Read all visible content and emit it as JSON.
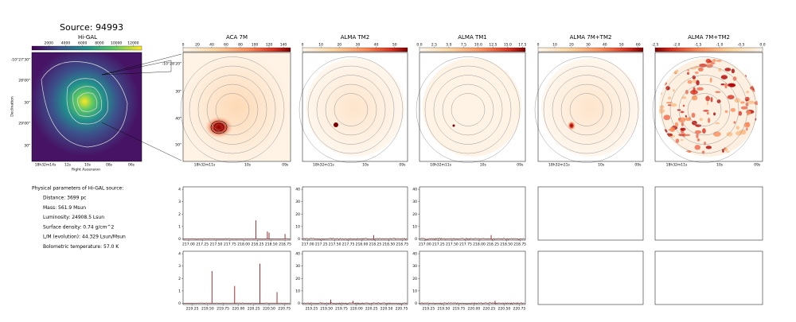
{
  "title": "Source: 94993",
  "higal": {
    "title": "Hi-GAL",
    "colorbar": {
      "lim": [
        0,
        13000
      ],
      "ticks": [
        2000,
        4000,
        6000,
        8000,
        10000,
        12000
      ]
    },
    "yticks": [
      "-10°27'30\"",
      "28'00\"",
      "30\"",
      "29'00\"",
      "30\""
    ],
    "xticks": [
      "18h32m14s",
      "12s",
      "10s",
      "08s",
      "06s"
    ],
    "ylabel": "Declination",
    "xlabel": "Right Ascension"
  },
  "panels": [
    {
      "title": "ACA 7M",
      "colorbar": {
        "lim": [
          0,
          150
        ],
        "ticks": [
          0,
          20,
          40,
          60,
          80,
          100,
          120,
          140
        ]
      },
      "yticks": [
        "-10°28'20\"",
        "30\"",
        "40\"",
        "50\""
      ],
      "xticks": [
        "18h32m11s",
        "10s",
        "09s"
      ]
    },
    {
      "title": "ALMA TM2",
      "colorbar": {
        "lim": [
          0,
          57
        ],
        "ticks": [
          0,
          10,
          20,
          30,
          40,
          50
        ]
      },
      "xticks": [
        "18h32m11s",
        "10s",
        "09s"
      ]
    },
    {
      "title": "ALMA TM1",
      "colorbar": {
        "lim": [
          0,
          18
        ],
        "ticks": [
          {
            "value": 0,
            "label": "0.0"
          },
          2.5,
          {
            "value": 5,
            "label": "5.0"
          },
          7.5,
          {
            "value": 10,
            "label": "10.0"
          },
          12.5,
          {
            "value": 15,
            "label": "15.0"
          },
          17.5
        ]
      },
      "xticks": [
        "18h32m11s",
        "10s",
        "09s"
      ]
    },
    {
      "title": "ALMA 7M+TM2",
      "colorbar": {
        "lim": [
          0,
          63
        ],
        "ticks": [
          0,
          10,
          20,
          30,
          40,
          50,
          60
        ]
      },
      "xticks": [
        "18h32m11s",
        "10s",
        "09s"
      ]
    },
    {
      "title": "ALMA 7M+TM2",
      "colorbar": {
        "lim": [
          -2.5,
          0
        ],
        "ticks": [
          -2.5,
          {
            "value": -2,
            "label": "-2.0"
          },
          -1.5,
          {
            "value": -1,
            "label": "-1.0"
          },
          -0.5,
          {
            "value": 0,
            "label": "0.0"
          }
        ]
      },
      "xticks": [
        "18h32m11s",
        "10s",
        "09s"
      ]
    }
  ],
  "params": {
    "heading": "Physical parameters of Hi-GAL source:",
    "lines": [
      "Distance: 3699 pc",
      "Mass: 561.9 Msun",
      "Luminosity: 24908.5 Lsun",
      "Surface density: 0.74 g/cm^2",
      "L/M (evolution): 44.329 Lsun/Msun",
      "Bolometric temperature: 57.0 K"
    ]
  },
  "spectra": [
    {
      "xlim": [
        216.9,
        218.85
      ],
      "xticks": [
        {
          "value": 217,
          "label": "217.00"
        },
        217.25,
        {
          "value": 217.5,
          "label": "217.50"
        },
        217.75,
        {
          "value": 218,
          "label": "218.00"
        },
        218.25,
        {
          "value": 218.5,
          "label": "218.50"
        },
        218.75
      ],
      "ylim": [
        -0.1,
        4.2
      ],
      "yticks": [
        0,
        1,
        2,
        3,
        4
      ],
      "peaks": [
        {
          "x": 218.22,
          "y": 1.5
        },
        {
          "x": 218.43,
          "y": 0.6
        },
        {
          "x": 218.46,
          "y": 0.5
        },
        {
          "x": 218.75,
          "y": 0.4
        }
      ]
    },
    {
      "xlim": [
        216.9,
        218.85
      ],
      "xticks": [
        {
          "value": 217,
          "label": "217.00"
        },
        217.25,
        {
          "value": 217.5,
          "label": "217.50"
        },
        217.75,
        {
          "value": 218,
          "label": "218.00"
        },
        218.25,
        {
          "value": 218.5,
          "label": "218.50"
        },
        218.75
      ],
      "ylim": [
        -1,
        42
      ],
      "yticks": [
        0,
        10,
        20,
        30,
        40
      ],
      "peaks": [
        {
          "x": 218.22,
          "y": 3
        }
      ]
    },
    {
      "xlim": [
        216.9,
        218.85
      ],
      "xticks": [
        {
          "value": 217,
          "label": "217.00"
        },
        217.25,
        {
          "value": 217.5,
          "label": "217.50"
        },
        217.75,
        {
          "value": 218,
          "label": "218.00"
        },
        218.25,
        {
          "value": 218.5,
          "label": "218.50"
        },
        218.75
      ],
      "ylim": [
        -1,
        42
      ],
      "yticks": [
        0,
        10,
        20,
        30,
        40
      ],
      "peaks": [
        {
          "x": 218.22,
          "y": 3
        }
      ]
    },
    {
      "xlim": [
        219.1,
        220.85
      ],
      "xticks": [
        219.25,
        {
          "value": 219.5,
          "label": "219.50"
        },
        219.75,
        {
          "value": 220,
          "label": "220.00"
        },
        220.25,
        {
          "value": 220.5,
          "label": "220.50"
        },
        220.75
      ],
      "ylim": [
        -0.1,
        4.2
      ],
      "yticks": [
        0,
        1,
        2,
        3,
        4
      ],
      "peaks": [
        {
          "x": 219.57,
          "y": 2.6
        },
        {
          "x": 219.94,
          "y": 1.4
        },
        {
          "x": 220.35,
          "y": 3.2
        },
        {
          "x": 220.63,
          "y": 0.9
        }
      ]
    },
    {
      "xlim": [
        219.1,
        220.85
      ],
      "xticks": [
        219.25,
        {
          "value": 219.5,
          "label": "219.50"
        },
        219.75,
        {
          "value": 220,
          "label": "220.00"
        },
        220.25,
        {
          "value": 220.5,
          "label": "220.50"
        },
        220.75
      ],
      "ylim": [
        -1,
        42
      ],
      "yticks": [
        0,
        10,
        20,
        30,
        40
      ],
      "peaks": [
        {
          "x": 219.57,
          "y": 3
        },
        {
          "x": 219.94,
          "y": 2
        }
      ]
    },
    {
      "xlim": [
        219.1,
        220.85
      ],
      "xticks": [
        219.25,
        {
          "value": 219.5,
          "label": "219.50"
        },
        219.75,
        {
          "value": 220,
          "label": "220.00"
        },
        220.25,
        {
          "value": 220.5,
          "label": "220.50"
        },
        220.75
      ],
      "ylim": [
        -1,
        42
      ],
      "yticks": [
        0,
        10,
        20,
        30,
        40
      ],
      "peaks": [
        {
          "x": 220.35,
          "y": 2
        }
      ]
    }
  ]
}
